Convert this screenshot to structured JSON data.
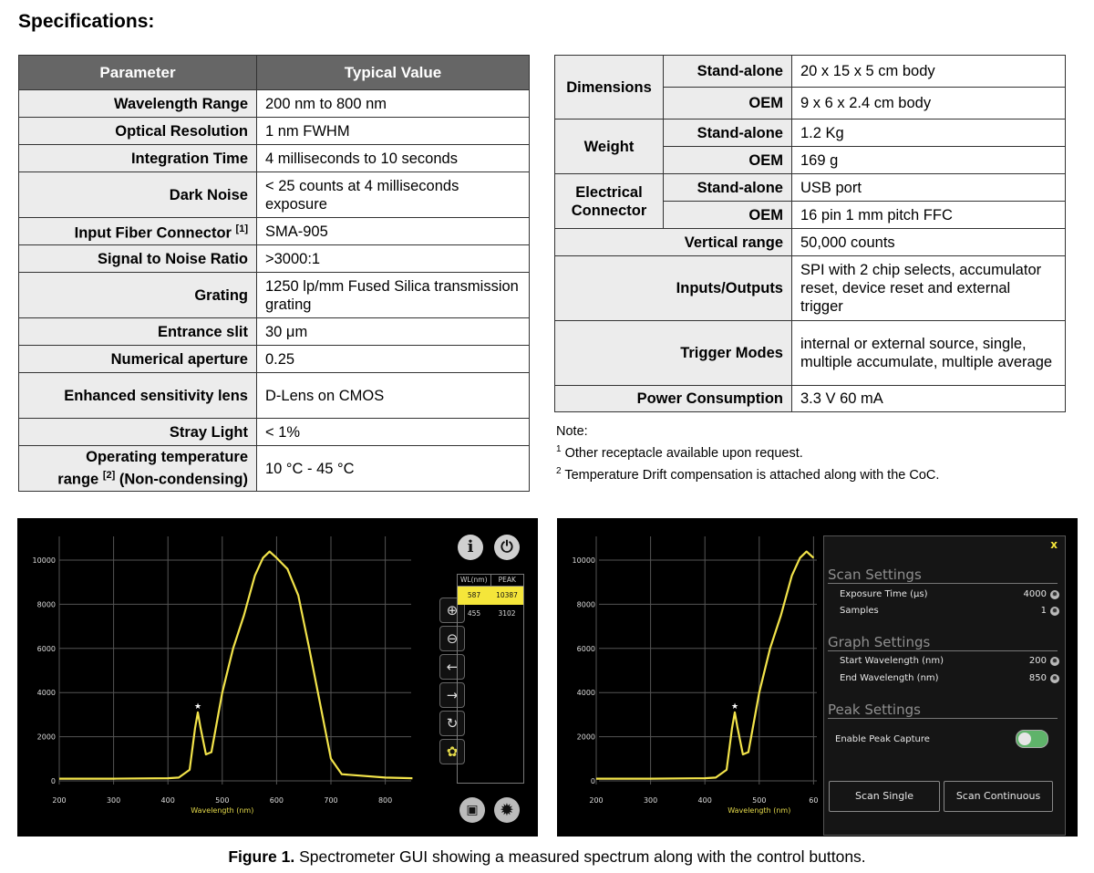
{
  "heading": "Specifications:",
  "left_table": {
    "headers": [
      "Parameter",
      "Typical Value"
    ],
    "rows": [
      {
        "param": "Wavelength Range",
        "value": "200 nm to 800 nm"
      },
      {
        "param": "Optical Resolution",
        "value": "1 nm FWHM"
      },
      {
        "param": "Integration Time",
        "value": "4 milliseconds to 10 seconds"
      },
      {
        "param": "Dark Noise",
        "value": "< 25 counts at 4 milliseconds exposure"
      },
      {
        "param": "Input Fiber Connector",
        "sup": "[1]",
        "value": "SMA-905"
      },
      {
        "param": "Signal to Noise Ratio",
        "value": ">3000:1"
      },
      {
        "param": "Grating",
        "value": "1250 lp/mm Fused Silica transmission grating"
      },
      {
        "param": "Entrance slit",
        "value": "30 μm"
      },
      {
        "param": "Numerical aperture",
        "value": "0.25"
      },
      {
        "param": "Enhanced sensitivity lens",
        "value": "D-Lens on CMOS"
      },
      {
        "param": "Stray Light",
        "value": "< 1%"
      },
      {
        "param_line1": "Operating temperature",
        "param_pre": "range ",
        "sup": "[2]",
        "param_post": " (Non-condensing)",
        "value": "10 °C - 45 °C"
      }
    ]
  },
  "right_table": {
    "dimensions": {
      "label": "Dimensions",
      "standalone_label": "Stand-alone",
      "standalone": "20 x 15 x 5 cm body",
      "oem_label": "OEM",
      "oem": "9 x 6 x 2.4 cm body"
    },
    "weight": {
      "label": "Weight",
      "standalone_label": "Stand-alone",
      "standalone": "1.2 Kg",
      "oem_label": "OEM",
      "oem": "169 g"
    },
    "electrical": {
      "label": "Electrical Connector",
      "standalone_label": "Stand-alone",
      "standalone": "USB port",
      "oem_label": "OEM",
      "oem": "16 pin 1 mm pitch FFC"
    },
    "rows": [
      {
        "param": "Vertical range",
        "value": "50,000 counts"
      },
      {
        "param": "Inputs/Outputs",
        "value": "SPI with 2 chip selects, accumulator reset, device reset and external trigger"
      },
      {
        "param": "Trigger Modes",
        "value": "internal or external source, single, multiple accumulate, multiple average"
      },
      {
        "param": "Power Consumption",
        "value": "3.3 V 60 mA"
      }
    ]
  },
  "notes": {
    "title": "Note:",
    "n1_num": "1",
    "n1": "Other receptacle available upon request.",
    "n2_num": "2",
    "n2": "Temperature Drift compensation is attached along with the CoC."
  },
  "gui_left": {
    "xlabel": "Wavelength (nm)",
    "yticks": [
      "10000",
      "8000",
      "6000",
      "4000",
      "2000",
      "0"
    ],
    "xticks": [
      "200",
      "300",
      "400",
      "500",
      "600",
      "700",
      "800"
    ],
    "peak_table": {
      "headers": [
        "WL(nm)",
        "PEAK"
      ],
      "rows": [
        [
          "587",
          "10387"
        ],
        [
          "455",
          "3102"
        ]
      ]
    },
    "buttons": {
      "zoom_in": "⊕",
      "zoom_out": "⊖",
      "left": "←",
      "right": "→",
      "refresh": "↻",
      "info": "i"
    }
  },
  "gui_right": {
    "xlabel": "Wavelength (nm)",
    "yticks": [
      "10000",
      "8000",
      "6000",
      "4000",
      "2000",
      "0"
    ],
    "xticks": [
      "200",
      "300",
      "400",
      "500",
      "60"
    ],
    "settings": {
      "close": "x",
      "scan_title": "Scan Settings",
      "exposure_label": "Exposure Time (μs)",
      "exposure": "4000",
      "samples_label": "Samples",
      "samples": "1",
      "graph_title": "Graph Settings",
      "start_label": "Start Wavelength (nm)",
      "start": "200",
      "end_label": "End Wavelength   (nm)",
      "end": "850",
      "peak_title": "Peak Settings",
      "peak_label": "Enable Peak Capture",
      "scan_single": "Scan Single",
      "scan_continuous": "Scan Continuous"
    }
  },
  "chart_data": [
    {
      "type": "line",
      "xlabel": "Wavelength (nm)",
      "xlim": [
        200,
        850
      ],
      "ylim": [
        0,
        10500
      ],
      "series": [
        {
          "x": [
            200,
            300,
            400,
            420,
            440,
            450,
            455,
            460,
            470,
            480,
            500,
            520,
            540,
            560,
            575,
            587,
            600,
            620,
            640,
            660,
            680,
            700,
            720,
            800,
            850
          ],
          "values": [
            100,
            100,
            120,
            150,
            500,
            2400,
            3102,
            2400,
            1200,
            1300,
            4000,
            6000,
            7500,
            9300,
            10100,
            10387,
            10100,
            9600,
            8400,
            6000,
            3500,
            1000,
            300,
            150,
            120
          ]
        }
      ]
    },
    {
      "type": "line",
      "xlabel": "Wavelength (nm)",
      "xlim": [
        200,
        600
      ],
      "ylim": [
        0,
        10500
      ],
      "series": [
        {
          "x": [
            200,
            300,
            400,
            420,
            440,
            450,
            455,
            460,
            470,
            480,
            500,
            520,
            540,
            560,
            575,
            587,
            600
          ],
          "values": [
            100,
            100,
            120,
            150,
            500,
            2400,
            3102,
            2400,
            1200,
            1300,
            4000,
            6000,
            7500,
            9300,
            10100,
            10387,
            10100
          ]
        }
      ]
    }
  ],
  "caption": {
    "bold": "Figure 1.",
    "text": " Spectrometer GUI showing a measured spectrum along with the control buttons."
  }
}
